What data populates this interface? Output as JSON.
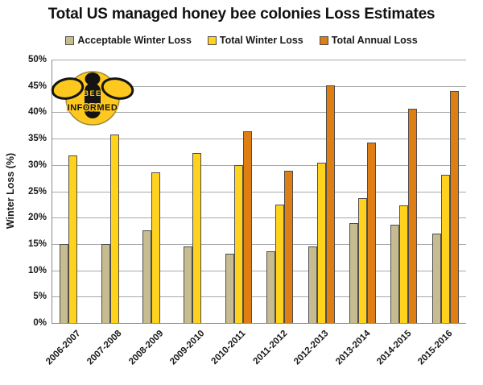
{
  "title": "Total US managed honey bee colonies Loss Estimates",
  "logo": {
    "line1": "BEE",
    "line2": "INFORMED"
  },
  "chart_data": {
    "type": "bar",
    "title": "Total US managed honey bee colonies Loss Estimates",
    "categories": [
      "2006-2007",
      "2007-2008",
      "2008-2009",
      "2009-2010",
      "2010-2011",
      "2011-2012",
      "2012-2013",
      "2013-2014",
      "2014-2015",
      "2015-2016"
    ],
    "series": [
      {
        "name": "Acceptable Winter Loss",
        "color": "#C7BC8F",
        "values": [
          15.0,
          15.0,
          17.6,
          14.5,
          13.2,
          13.6,
          14.6,
          18.9,
          18.7,
          16.9
        ]
      },
      {
        "name": "Total Winter Loss",
        "color": "#FFD21E",
        "values": [
          31.8,
          35.8,
          28.6,
          32.2,
          29.9,
          22.5,
          30.5,
          23.7,
          22.3,
          28.1
        ]
      },
      {
        "name": "Total Annual Loss",
        "color": "#DE7E13",
        "values": [
          null,
          null,
          null,
          null,
          36.4,
          28.9,
          45.1,
          34.2,
          40.6,
          44.1
        ]
      }
    ],
    "xlabel": "",
    "ylabel": "Winter Loss (%)",
    "ylim": [
      0,
      50
    ],
    "ytick_step": 5,
    "ytick_suffix": "%",
    "grid": true,
    "legend_position": "top"
  },
  "colors": {
    "gridline": "#a8a8a8",
    "axis": "#8c8c8c",
    "bar_border": "#4d4d4d",
    "text": "#1a1a1a",
    "logo_gold": "#FFC81E",
    "logo_black": "#141414"
  }
}
